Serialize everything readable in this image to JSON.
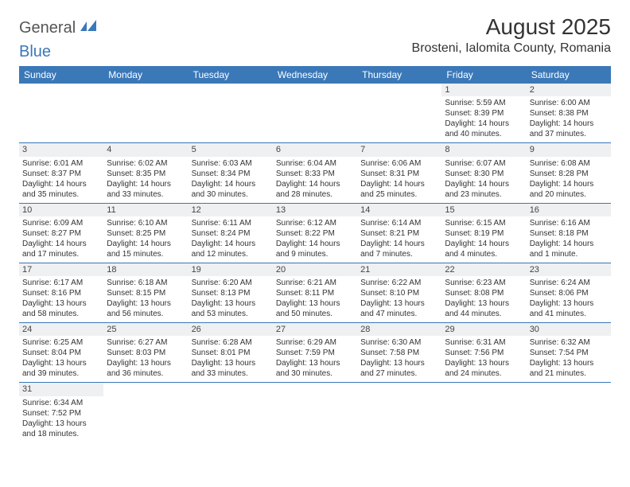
{
  "logo": {
    "general": "General",
    "blue": "Blue"
  },
  "title": "August 2025",
  "location": "Brosteni, Ialomita County, Romania",
  "colors": {
    "header_bg": "#3b78b8",
    "header_text": "#ffffff",
    "daynum_bg": "#eef0f2",
    "border": "#3b78b8"
  },
  "day_headers": [
    "Sunday",
    "Monday",
    "Tuesday",
    "Wednesday",
    "Thursday",
    "Friday",
    "Saturday"
  ],
  "weeks": [
    [
      null,
      null,
      null,
      null,
      null,
      {
        "n": "1",
        "sr": "Sunrise: 5:59 AM",
        "ss": "Sunset: 8:39 PM",
        "dl1": "Daylight: 14 hours",
        "dl2": "and 40 minutes."
      },
      {
        "n": "2",
        "sr": "Sunrise: 6:00 AM",
        "ss": "Sunset: 8:38 PM",
        "dl1": "Daylight: 14 hours",
        "dl2": "and 37 minutes."
      }
    ],
    [
      {
        "n": "3",
        "sr": "Sunrise: 6:01 AM",
        "ss": "Sunset: 8:37 PM",
        "dl1": "Daylight: 14 hours",
        "dl2": "and 35 minutes."
      },
      {
        "n": "4",
        "sr": "Sunrise: 6:02 AM",
        "ss": "Sunset: 8:35 PM",
        "dl1": "Daylight: 14 hours",
        "dl2": "and 33 minutes."
      },
      {
        "n": "5",
        "sr": "Sunrise: 6:03 AM",
        "ss": "Sunset: 8:34 PM",
        "dl1": "Daylight: 14 hours",
        "dl2": "and 30 minutes."
      },
      {
        "n": "6",
        "sr": "Sunrise: 6:04 AM",
        "ss": "Sunset: 8:33 PM",
        "dl1": "Daylight: 14 hours",
        "dl2": "and 28 minutes."
      },
      {
        "n": "7",
        "sr": "Sunrise: 6:06 AM",
        "ss": "Sunset: 8:31 PM",
        "dl1": "Daylight: 14 hours",
        "dl2": "and 25 minutes."
      },
      {
        "n": "8",
        "sr": "Sunrise: 6:07 AM",
        "ss": "Sunset: 8:30 PM",
        "dl1": "Daylight: 14 hours",
        "dl2": "and 23 minutes."
      },
      {
        "n": "9",
        "sr": "Sunrise: 6:08 AM",
        "ss": "Sunset: 8:28 PM",
        "dl1": "Daylight: 14 hours",
        "dl2": "and 20 minutes."
      }
    ],
    [
      {
        "n": "10",
        "sr": "Sunrise: 6:09 AM",
        "ss": "Sunset: 8:27 PM",
        "dl1": "Daylight: 14 hours",
        "dl2": "and 17 minutes."
      },
      {
        "n": "11",
        "sr": "Sunrise: 6:10 AM",
        "ss": "Sunset: 8:25 PM",
        "dl1": "Daylight: 14 hours",
        "dl2": "and 15 minutes."
      },
      {
        "n": "12",
        "sr": "Sunrise: 6:11 AM",
        "ss": "Sunset: 8:24 PM",
        "dl1": "Daylight: 14 hours",
        "dl2": "and 12 minutes."
      },
      {
        "n": "13",
        "sr": "Sunrise: 6:12 AM",
        "ss": "Sunset: 8:22 PM",
        "dl1": "Daylight: 14 hours",
        "dl2": "and 9 minutes."
      },
      {
        "n": "14",
        "sr": "Sunrise: 6:14 AM",
        "ss": "Sunset: 8:21 PM",
        "dl1": "Daylight: 14 hours",
        "dl2": "and 7 minutes."
      },
      {
        "n": "15",
        "sr": "Sunrise: 6:15 AM",
        "ss": "Sunset: 8:19 PM",
        "dl1": "Daylight: 14 hours",
        "dl2": "and 4 minutes."
      },
      {
        "n": "16",
        "sr": "Sunrise: 6:16 AM",
        "ss": "Sunset: 8:18 PM",
        "dl1": "Daylight: 14 hours",
        "dl2": "and 1 minute."
      }
    ],
    [
      {
        "n": "17",
        "sr": "Sunrise: 6:17 AM",
        "ss": "Sunset: 8:16 PM",
        "dl1": "Daylight: 13 hours",
        "dl2": "and 58 minutes."
      },
      {
        "n": "18",
        "sr": "Sunrise: 6:18 AM",
        "ss": "Sunset: 8:15 PM",
        "dl1": "Daylight: 13 hours",
        "dl2": "and 56 minutes."
      },
      {
        "n": "19",
        "sr": "Sunrise: 6:20 AM",
        "ss": "Sunset: 8:13 PM",
        "dl1": "Daylight: 13 hours",
        "dl2": "and 53 minutes."
      },
      {
        "n": "20",
        "sr": "Sunrise: 6:21 AM",
        "ss": "Sunset: 8:11 PM",
        "dl1": "Daylight: 13 hours",
        "dl2": "and 50 minutes."
      },
      {
        "n": "21",
        "sr": "Sunrise: 6:22 AM",
        "ss": "Sunset: 8:10 PM",
        "dl1": "Daylight: 13 hours",
        "dl2": "and 47 minutes."
      },
      {
        "n": "22",
        "sr": "Sunrise: 6:23 AM",
        "ss": "Sunset: 8:08 PM",
        "dl1": "Daylight: 13 hours",
        "dl2": "and 44 minutes."
      },
      {
        "n": "23",
        "sr": "Sunrise: 6:24 AM",
        "ss": "Sunset: 8:06 PM",
        "dl1": "Daylight: 13 hours",
        "dl2": "and 41 minutes."
      }
    ],
    [
      {
        "n": "24",
        "sr": "Sunrise: 6:25 AM",
        "ss": "Sunset: 8:04 PM",
        "dl1": "Daylight: 13 hours",
        "dl2": "and 39 minutes."
      },
      {
        "n": "25",
        "sr": "Sunrise: 6:27 AM",
        "ss": "Sunset: 8:03 PM",
        "dl1": "Daylight: 13 hours",
        "dl2": "and 36 minutes."
      },
      {
        "n": "26",
        "sr": "Sunrise: 6:28 AM",
        "ss": "Sunset: 8:01 PM",
        "dl1": "Daylight: 13 hours",
        "dl2": "and 33 minutes."
      },
      {
        "n": "27",
        "sr": "Sunrise: 6:29 AM",
        "ss": "Sunset: 7:59 PM",
        "dl1": "Daylight: 13 hours",
        "dl2": "and 30 minutes."
      },
      {
        "n": "28",
        "sr": "Sunrise: 6:30 AM",
        "ss": "Sunset: 7:58 PM",
        "dl1": "Daylight: 13 hours",
        "dl2": "and 27 minutes."
      },
      {
        "n": "29",
        "sr": "Sunrise: 6:31 AM",
        "ss": "Sunset: 7:56 PM",
        "dl1": "Daylight: 13 hours",
        "dl2": "and 24 minutes."
      },
      {
        "n": "30",
        "sr": "Sunrise: 6:32 AM",
        "ss": "Sunset: 7:54 PM",
        "dl1": "Daylight: 13 hours",
        "dl2": "and 21 minutes."
      }
    ],
    [
      {
        "n": "31",
        "sr": "Sunrise: 6:34 AM",
        "ss": "Sunset: 7:52 PM",
        "dl1": "Daylight: 13 hours",
        "dl2": "and 18 minutes."
      },
      null,
      null,
      null,
      null,
      null,
      null
    ]
  ]
}
